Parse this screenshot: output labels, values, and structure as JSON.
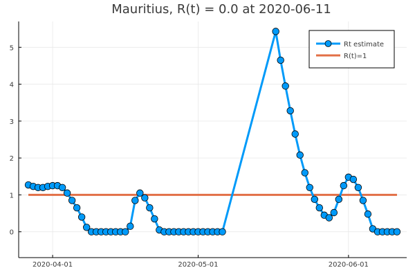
{
  "chart_data": {
    "type": "line",
    "title": "Mauritius, R(t) = 0.0 at 2020-06-11",
    "xlabel": "",
    "ylabel": "",
    "x_ticks": [
      "2020-04-01",
      "2020-05-01",
      "2020-06-01"
    ],
    "y_ticks": [
      "0",
      "1",
      "2",
      "3",
      "4",
      "5"
    ],
    "xlim": [
      "2020-03-25",
      "2020-06-13"
    ],
    "ylim": [
      -0.7,
      5.7
    ],
    "grid": true,
    "legend_position": "top-right",
    "series": [
      {
        "name": "Rt estimate",
        "color": "#009af9",
        "marker": "circle",
        "x": [
          "2020-03-27",
          "2020-03-28",
          "2020-03-29",
          "2020-03-30",
          "2020-03-31",
          "2020-04-01",
          "2020-04-02",
          "2020-04-03",
          "2020-04-04",
          "2020-04-05",
          "2020-04-06",
          "2020-04-07",
          "2020-04-08",
          "2020-04-09",
          "2020-04-10",
          "2020-04-11",
          "2020-04-12",
          "2020-04-13",
          "2020-04-14",
          "2020-04-15",
          "2020-04-16",
          "2020-04-17",
          "2020-04-18",
          "2020-04-19",
          "2020-04-20",
          "2020-04-21",
          "2020-04-22",
          "2020-04-23",
          "2020-04-24",
          "2020-04-25",
          "2020-04-26",
          "2020-04-27",
          "2020-04-28",
          "2020-04-29",
          "2020-04-30",
          "2020-05-01",
          "2020-05-02",
          "2020-05-03",
          "2020-05-04",
          "2020-05-05",
          "2020-05-06",
          "2020-05-17",
          "2020-05-18",
          "2020-05-19",
          "2020-05-20",
          "2020-05-21",
          "2020-05-22",
          "2020-05-23",
          "2020-05-24",
          "2020-05-25",
          "2020-05-26",
          "2020-05-27",
          "2020-05-28",
          "2020-05-29",
          "2020-05-30",
          "2020-05-31",
          "2020-06-01",
          "2020-06-02",
          "2020-06-03",
          "2020-06-04",
          "2020-06-05",
          "2020-06-06",
          "2020-06-07",
          "2020-06-08",
          "2020-06-09",
          "2020-06-10",
          "2020-06-11"
        ],
        "y": [
          1.27,
          1.23,
          1.2,
          1.2,
          1.23,
          1.25,
          1.25,
          1.2,
          1.05,
          0.85,
          0.65,
          0.4,
          0.12,
          0.0,
          0.0,
          0.0,
          0.0,
          0.0,
          0.0,
          0.0,
          0.0,
          0.15,
          0.85,
          1.05,
          0.92,
          0.65,
          0.35,
          0.05,
          0.0,
          0.0,
          0.0,
          0.0,
          0.0,
          0.0,
          0.0,
          0.0,
          0.0,
          0.0,
          0.0,
          0.0,
          0.0,
          5.43,
          4.65,
          3.95,
          3.28,
          2.65,
          2.08,
          1.6,
          1.2,
          0.88,
          0.65,
          0.45,
          0.38,
          0.52,
          0.88,
          1.25,
          1.48,
          1.42,
          1.2,
          0.85,
          0.48,
          0.08,
          0.0,
          0.0,
          0.0,
          0.0,
          0.0
        ]
      },
      {
        "name": "R(t)=1",
        "color": "#e26f46",
        "x": [
          "2020-03-27",
          "2020-06-11"
        ],
        "y": [
          1,
          1
        ]
      }
    ]
  }
}
